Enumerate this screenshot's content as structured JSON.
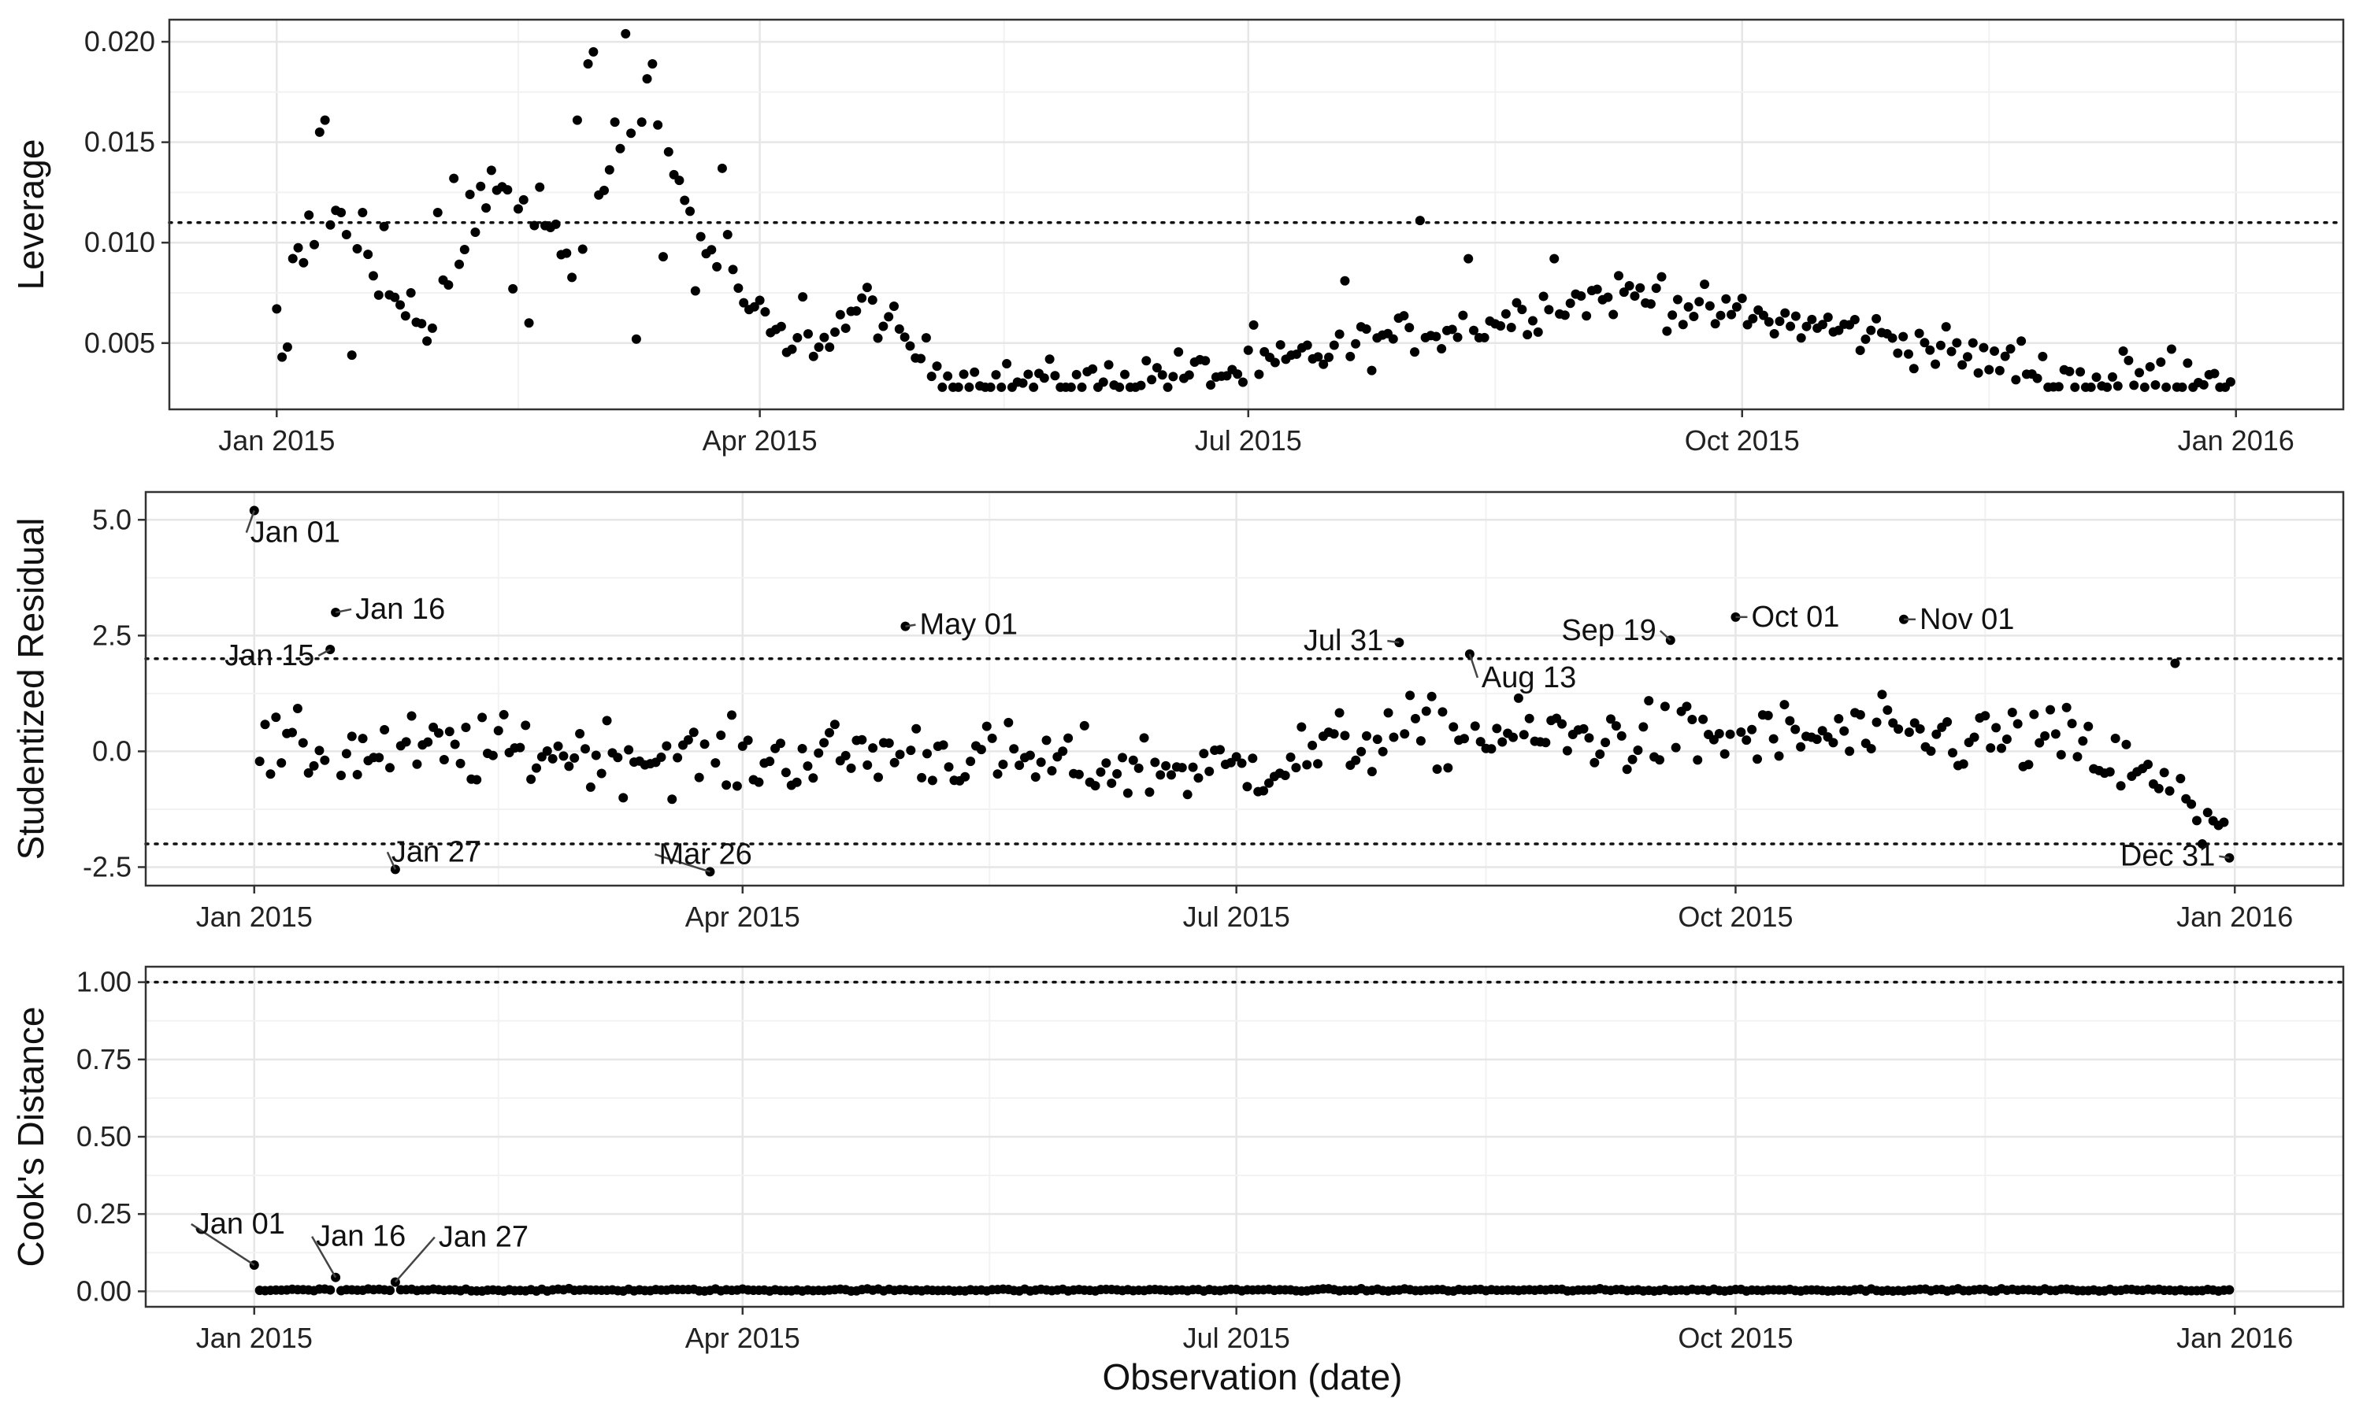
{
  "chart_data": [
    {
      "type": "scatter",
      "ylabel": "Leverage",
      "xlabel": "",
      "xlim": [
        "2014-12-12",
        "2016-01-21"
      ],
      "ylim": [
        0.0017,
        0.0211
      ],
      "x_ticks": [
        "Jan 2015",
        "Apr 2015",
        "Jul 2015",
        "Oct 2015",
        "Jan 2016"
      ],
      "y_ticks": [
        "0.005",
        "0.010",
        "0.015",
        "0.020"
      ],
      "threshold": 0.011,
      "profile": [
        [
          "2015-01-01",
          0.0065
        ],
        [
          "2015-01-08",
          0.0115
        ],
        [
          "2015-01-15",
          0.0105
        ],
        [
          "2015-01-22",
          0.007
        ],
        [
          "2015-01-29",
          0.006
        ],
        [
          "2015-02-05",
          0.0095
        ],
        [
          "2015-02-12",
          0.0125
        ],
        [
          "2015-02-19",
          0.0115
        ],
        [
          "2015-02-26",
          0.0085
        ],
        [
          "2015-03-05",
          0.0145
        ],
        [
          "2015-03-10",
          0.0185
        ],
        [
          "2015-03-17",
          0.0125
        ],
        [
          "2015-03-24",
          0.009
        ],
        [
          "2015-03-31",
          0.0065
        ],
        [
          "2015-04-07",
          0.0045
        ],
        [
          "2015-04-14",
          0.0055
        ],
        [
          "2015-04-21",
          0.007
        ],
        [
          "2015-04-28",
          0.005
        ],
        [
          "2015-05-05",
          0.0035
        ],
        [
          "2015-05-15",
          0.003
        ],
        [
          "2015-06-01",
          0.003
        ],
        [
          "2015-06-15",
          0.0035
        ],
        [
          "2015-07-01",
          0.0035
        ],
        [
          "2015-07-15",
          0.0045
        ],
        [
          "2015-08-01",
          0.0055
        ],
        [
          "2015-08-15",
          0.006
        ],
        [
          "2015-08-27",
          0.007
        ],
        [
          "2015-09-10",
          0.0075
        ],
        [
          "2015-09-25",
          0.0065
        ],
        [
          "2015-10-10",
          0.006
        ],
        [
          "2015-10-25",
          0.0055
        ],
        [
          "2015-11-10",
          0.0045
        ],
        [
          "2015-11-25",
          0.0035
        ],
        [
          "2015-12-10",
          0.003
        ],
        [
          "2015-12-31",
          0.0035
        ]
      ],
      "noise": 0.0011,
      "points": [
        [
          "2015-01-01",
          0.0067
        ],
        [
          "2015-01-02",
          0.0043
        ],
        [
          "2015-01-03",
          0.0048
        ],
        [
          "2015-01-06",
          0.009
        ],
        [
          "2015-01-08",
          0.0099
        ],
        [
          "2015-01-09",
          0.0155
        ],
        [
          "2015-01-10",
          0.0161
        ],
        [
          "2015-01-13",
          0.0115
        ],
        [
          "2015-01-14",
          0.0104
        ],
        [
          "2015-01-15",
          0.0044
        ],
        [
          "2015-01-17",
          0.0115
        ],
        [
          "2015-01-21",
          0.0108
        ],
        [
          "2015-01-26",
          0.0075
        ],
        [
          "2015-01-31",
          0.0115
        ],
        [
          "2015-02-03",
          0.0132
        ],
        [
          "2015-02-06",
          0.0124
        ],
        [
          "2015-02-08",
          0.0128
        ],
        [
          "2015-02-10",
          0.0136
        ],
        [
          "2015-02-14",
          0.0077
        ],
        [
          "2015-02-17",
          0.006
        ],
        [
          "2015-02-26",
          0.0161
        ],
        [
          "2015-02-28",
          0.0189
        ],
        [
          "2015-03-01",
          0.0195
        ],
        [
          "2015-03-03",
          0.0126
        ],
        [
          "2015-03-05",
          0.016
        ],
        [
          "2015-03-07",
          0.0204
        ],
        [
          "2015-03-09",
          0.0052
        ],
        [
          "2015-03-10",
          0.016
        ],
        [
          "2015-03-12",
          0.0189
        ],
        [
          "2015-03-14",
          0.0093
        ],
        [
          "2015-03-17",
          0.0131
        ],
        [
          "2015-03-20",
          0.0076
        ],
        [
          "2015-03-25",
          0.0137
        ],
        [
          "2015-03-26",
          0.0104
        ],
        [
          "2015-04-09",
          0.0073
        ],
        [
          "2015-07-02",
          0.0059
        ],
        [
          "2015-07-19",
          0.0081
        ],
        [
          "2015-08-02",
          0.0111
        ],
        [
          "2015-08-11",
          0.0092
        ],
        [
          "2015-08-27",
          0.0092
        ],
        [
          "2015-09-16",
          0.0083
        ],
        [
          "2015-09-30",
          0.0068
        ],
        [
          "2015-11-22",
          0.0051
        ],
        [
          "2015-12-11",
          0.0046
        ],
        [
          "2015-12-20",
          0.0047
        ]
      ],
      "annotations": []
    },
    {
      "type": "scatter",
      "ylabel": "Studentized Residual",
      "xlabel": "",
      "xlim": [
        "2014-12-12",
        "2016-01-21"
      ],
      "ylim": [
        -2.9,
        5.6
      ],
      "x_ticks": [
        "Jan 2015",
        "Apr 2015",
        "Jul 2015",
        "Oct 2015",
        "Jan 2016"
      ],
      "y_ticks": [
        "-2.5",
        "0.0",
        "2.5",
        "5.0"
      ],
      "thresholds": [
        2,
        -2
      ],
      "profile": [
        [
          "2015-01-01",
          0.0
        ],
        [
          "2015-02-01",
          0.0
        ],
        [
          "2015-03-01",
          0.0
        ],
        [
          "2015-04-01",
          -0.2
        ],
        [
          "2015-05-01",
          0.0
        ],
        [
          "2015-06-01",
          -0.3
        ],
        [
          "2015-07-01",
          -0.4
        ],
        [
          "2015-08-01",
          0.4
        ],
        [
          "2015-09-01",
          0.3
        ],
        [
          "2015-10-01",
          0.3
        ],
        [
          "2015-11-01",
          0.3
        ],
        [
          "2015-12-01",
          0.2
        ],
        [
          "2015-12-31",
          -1.5
        ]
      ],
      "noise": 0.75,
      "points": [
        [
          "2015-01-01",
          5.2
        ],
        [
          "2015-01-15",
          2.2
        ],
        [
          "2015-01-16",
          3.0
        ],
        [
          "2015-01-27",
          -2.55
        ],
        [
          "2015-03-26",
          -2.6
        ],
        [
          "2015-05-01",
          2.7
        ],
        [
          "2015-07-31",
          2.35
        ],
        [
          "2015-08-13",
          2.1
        ],
        [
          "2015-09-19",
          2.4
        ],
        [
          "2015-10-01",
          2.9
        ],
        [
          "2015-11-01",
          2.85
        ],
        [
          "2015-12-31",
          -2.3
        ],
        [
          "2015-12-21",
          1.9
        ],
        [
          "2015-12-28",
          -1.5
        ],
        [
          "2015-12-29",
          -1.6
        ],
        [
          "2015-12-26",
          -2.0
        ]
      ],
      "annotations": [
        {
          "label": "Jan 01",
          "x": "2015-01-01",
          "y": 5.2
        },
        {
          "label": "Jan 16",
          "x": "2015-01-16",
          "y": 3.0
        },
        {
          "label": "Jan 15",
          "x": "2015-01-15",
          "y": 2.2
        },
        {
          "label": "Jan 27",
          "x": "2015-01-27",
          "y": -2.55
        },
        {
          "label": "Mar 26",
          "x": "2015-03-26",
          "y": -2.6
        },
        {
          "label": "May 01",
          "x": "2015-05-01",
          "y": 2.7
        },
        {
          "label": "Jul 31",
          "x": "2015-07-31",
          "y": 2.35
        },
        {
          "label": "Aug 13",
          "x": "2015-08-13",
          "y": 2.1
        },
        {
          "label": "Sep 19",
          "x": "2015-09-19",
          "y": 2.4
        },
        {
          "label": "Oct 01",
          "x": "2015-10-01",
          "y": 2.9
        },
        {
          "label": "Nov 01",
          "x": "2015-11-01",
          "y": 2.85
        },
        {
          "label": "Dec 31",
          "x": "2015-12-31",
          "y": -2.3
        }
      ]
    },
    {
      "type": "scatter",
      "ylabel": "Cook's Distance",
      "xlabel": "Observation (date)",
      "xlim": [
        "2014-12-12",
        "2016-01-21"
      ],
      "ylim": [
        -0.05,
        1.05
      ],
      "x_ticks": [
        "Jan 2015",
        "Apr 2015",
        "Jul 2015",
        "Oct 2015",
        "Jan 2016"
      ],
      "y_ticks": [
        "0.00",
        "0.25",
        "0.50",
        "0.75",
        "1.00"
      ],
      "threshold": 1.0,
      "profile": [
        [
          "2015-01-01",
          0.004
        ],
        [
          "2015-12-31",
          0.004
        ]
      ],
      "noise": 0.004,
      "points": [
        [
          "2015-01-01",
          0.085
        ],
        [
          "2015-01-16",
          0.045
        ],
        [
          "2015-01-27",
          0.03
        ]
      ],
      "annotations": [
        {
          "label": "Jan 01",
          "x": "2015-01-01",
          "y": 0.085
        },
        {
          "label": "Jan 16",
          "x": "2015-01-16",
          "y": 0.045
        },
        {
          "label": "Jan 27",
          "x": "2015-01-27",
          "y": 0.03
        }
      ]
    }
  ]
}
